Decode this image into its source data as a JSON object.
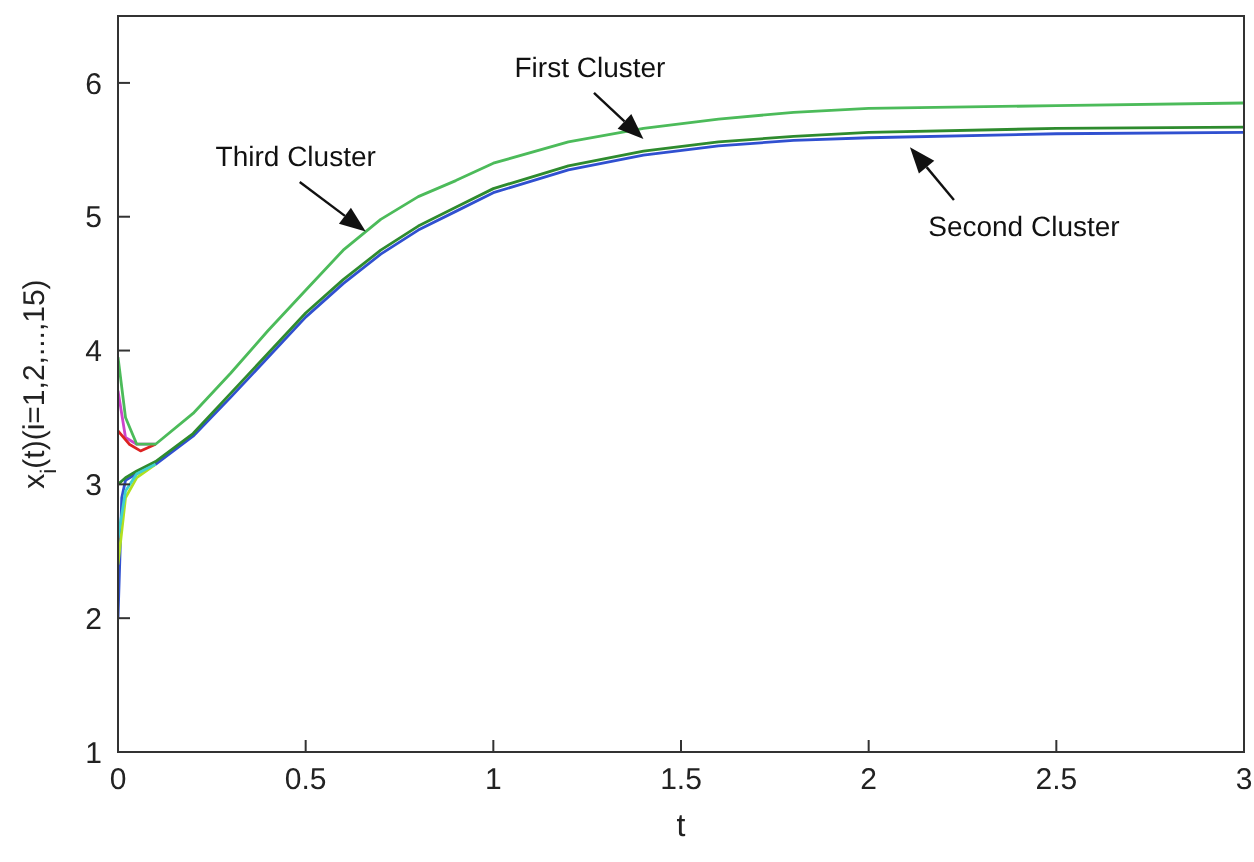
{
  "chart_data": {
    "type": "line",
    "xlabel": "t",
    "ylabel": "x$_{i}$(t)(i=1,2,...,15)",
    "xlim": [
      0,
      3
    ],
    "xticks": [
      0,
      0.5,
      1,
      1.5,
      2,
      2.5,
      3
    ],
    "ylim": [
      1,
      6.5
    ],
    "yticks": [
      1,
      2,
      3,
      4,
      5,
      6
    ],
    "grid": false,
    "marker": "none",
    "line_style": "solid",
    "annotations": [
      {
        "text": "First Cluster",
        "x": 1.4,
        "y": 5.58
      },
      {
        "text": "Third Cluster",
        "x": 0.66,
        "y": 4.89
      },
      {
        "text": "Second Cluster",
        "x": 2.11,
        "y": 5.52
      }
    ],
    "series": [
      {
        "color": "#4cbb5a",
        "x": [
          0,
          0.02,
          0.05,
          0.1,
          0.2,
          0.3,
          0.4,
          0.5,
          0.6,
          0.7,
          0.8,
          0.9,
          1.0,
          1.2,
          1.4,
          1.6,
          1.8,
          2.0,
          2.5,
          3.0
        ],
        "values": [
          3.95,
          3.5,
          3.3,
          3.3,
          3.53,
          3.83,
          4.15,
          4.45,
          4.75,
          4.98,
          5.15,
          5.27,
          5.4,
          5.56,
          5.66,
          5.73,
          5.78,
          5.81,
          5.83,
          5.85
        ]
      },
      {
        "color": "#dd2222",
        "x": [
          0,
          0.03,
          0.06,
          0.1
        ],
        "values": [
          3.4,
          3.3,
          3.25,
          3.3
        ]
      },
      {
        "color": "#cc44cc",
        "x": [
          0,
          0.02,
          0.05,
          0.1
        ],
        "values": [
          3.7,
          3.35,
          3.3,
          3.3
        ]
      },
      {
        "color": "#3fd0d0",
        "x": [
          0,
          0.02,
          0.05,
          0.1
        ],
        "values": [
          2.6,
          2.95,
          3.08,
          3.15
        ]
      },
      {
        "color": "#b0e020",
        "x": [
          0,
          0.02,
          0.05,
          0.1
        ],
        "values": [
          2.4,
          2.9,
          3.05,
          3.15
        ]
      },
      {
        "color": "#2e8b2e",
        "x": [
          0,
          0.02,
          0.05,
          0.1,
          0.2,
          0.3,
          0.4,
          0.5,
          0.6,
          0.7,
          0.8,
          0.9,
          1.0,
          1.2,
          1.4,
          1.6,
          1.8,
          2.0,
          2.5,
          3.0
        ],
        "values": [
          3.0,
          3.05,
          3.1,
          3.17,
          3.38,
          3.68,
          3.98,
          4.28,
          4.53,
          4.75,
          4.93,
          5.07,
          5.21,
          5.38,
          5.49,
          5.56,
          5.6,
          5.63,
          5.66,
          5.67
        ]
      },
      {
        "color": "#3050d0",
        "x": [
          0,
          0.01,
          0.02,
          0.05,
          0.1,
          0.2,
          0.3,
          0.4,
          0.5,
          0.6,
          0.7,
          0.8,
          0.9,
          1.0,
          1.2,
          1.4,
          1.6,
          1.8,
          2.0,
          2.5,
          3.0
        ],
        "values": [
          2.0,
          2.9,
          3.03,
          3.08,
          3.15,
          3.36,
          3.65,
          3.95,
          4.25,
          4.5,
          4.72,
          4.9,
          5.04,
          5.18,
          5.35,
          5.46,
          5.53,
          5.57,
          5.59,
          5.62,
          5.63
        ]
      }
    ]
  }
}
